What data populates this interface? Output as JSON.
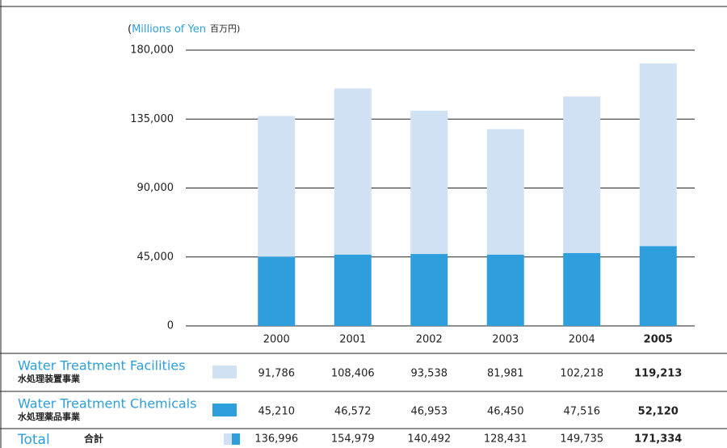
{
  "chart_data": {
    "type": "bar",
    "stacked": true,
    "y_label": {
      "open": "(",
      "en": "Millions of Yen",
      "ja": "百万円)"
    },
    "categories": [
      "2000",
      "2001",
      "2002",
      "2003",
      "2004",
      "2005"
    ],
    "series": [
      {
        "name": "Water Treatment Facilities",
        "name_ja": "水処理装置事業",
        "color": "#cfe1f3",
        "values": [
          91786,
          108406,
          93538,
          81981,
          102218,
          119213
        ],
        "value_labels": [
          "91,786",
          "108,406",
          "93,538",
          "81,981",
          "102,218",
          "119,213"
        ]
      },
      {
        "name": "Water Treatment Chemicals",
        "name_ja": "水処理薬品事業",
        "color": "#2e9fdc",
        "values": [
          45210,
          46572,
          46953,
          46450,
          47516,
          52120
        ],
        "value_labels": [
          "45,210",
          "46,572",
          "46,953",
          "46,450",
          "47,516",
          "52,120"
        ]
      }
    ],
    "total": {
      "name": "Total",
      "name_ja": "合計",
      "values": [
        136996,
        154979,
        140492,
        128431,
        149735,
        171334
      ],
      "value_labels": [
        "136,996",
        "154,979",
        "140,492",
        "128,431",
        "149,735",
        "171,334"
      ]
    },
    "ylim": [
      0,
      180000
    ],
    "yticks": [
      0,
      {
        "value": 45000,
        "label": "45,000"
      },
      {
        "value": 90000,
        "label": "90,000"
      },
      {
        "value": 135000,
        "label": "135,000"
      },
      {
        "value": 180000,
        "label": "180,000"
      }
    ],
    "grid": true
  }
}
